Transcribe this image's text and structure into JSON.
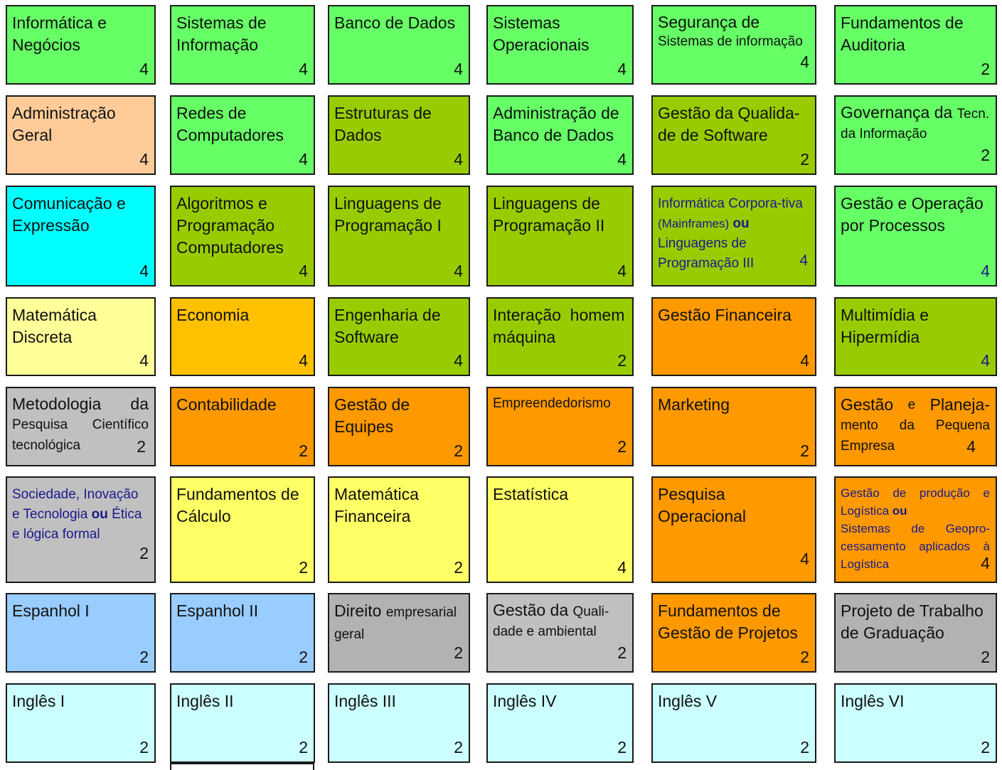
{
  "colors": {
    "bright_green": "#66ff66",
    "olive_green": "#99cc00",
    "peach": "#ffcc99",
    "cyan": "#00ffff",
    "light_yellow": "#ffff99",
    "yellow": "#ffff66",
    "gold": "#ffc000",
    "orange": "#ff9900",
    "gray": "#c0c0c0",
    "dark_gray": "#b2b2b2",
    "light_blue": "#99ccff",
    "pale_cyan": "#ccffff",
    "dark_blue_text": "#1a1a8c"
  },
  "courses": {
    "r1c1": {
      "l1": "Informática e",
      "l2": "Negócios",
      "credits": "4"
    },
    "r1c2": {
      "l1": "Sistemas de",
      "l2": "Informação",
      "credits": "4"
    },
    "r1c3": {
      "l1": "Banco de Dados",
      "credits": "4"
    },
    "r1c4": {
      "l1": "Sistemas",
      "l2": "Operacionais",
      "credits": "4"
    },
    "r1c5": {
      "l1": "Segurança de",
      "l2": "Sistemas de informação",
      "credits": "4"
    },
    "r1c6": {
      "l1": "Fundamentos de",
      "l2": "Auditoria",
      "credits": "2"
    },
    "r2c1": {
      "l1": "Administração",
      "l2": "Geral",
      "credits": "4"
    },
    "r2c2": {
      "l1": "Redes de",
      "l2": "Computadores",
      "credits": "4"
    },
    "r2c3": {
      "l1": "Estruturas de",
      "l2": "Dados",
      "credits": "4"
    },
    "r2c4": {
      "l1": "Administração de",
      "l2": "Banco de Dados",
      "credits": "4"
    },
    "r2c5": {
      "l1": "Gestão da Qualida-",
      "l2": "de de Software",
      "credits": "2"
    },
    "r2c6": {
      "l1a": "Governança da",
      "l1b": "Tecn.",
      "l2": "da Informação",
      "credits": "2"
    },
    "r3c1": {
      "l1": "Comunicação e",
      "l2": "Expressão",
      "credits": "4"
    },
    "r3c2": {
      "l1": "Algoritmos e",
      "l2": "Programação",
      "l3": "Computadores",
      "credits": "4"
    },
    "r3c3": {
      "l1": "Linguagens de",
      "l2": "Programação I",
      "credits": "4"
    },
    "r3c4": {
      "l1": "Linguagens de",
      "l2": "Programação II",
      "credits": "4"
    },
    "r3c5": {
      "l1": "Informática Corpora-tiva",
      "l2": "(Mainframes)",
      "or": "ou",
      "l3": "Linguagens de",
      "l4": "Programação III",
      "credits": "4"
    },
    "r3c6": {
      "l1": "Gestão e Operação",
      "l2": "por Processos",
      "credits": "4"
    },
    "r4c1": {
      "l1": "Matemática",
      "l2": "Discreta",
      "credits": "4"
    },
    "r4c2": {
      "l1": "Economia",
      "credits": "4"
    },
    "r4c3": {
      "l1": "Engenharia de",
      "l2": "Software",
      "credits": "4"
    },
    "r4c4": {
      "l1": "Interação  homem",
      "l2": "máquina",
      "credits": "2"
    },
    "r4c5": {
      "l1": "Gestão Financeira",
      "credits": "4"
    },
    "r4c6": {
      "l1": "Multimídia e",
      "l2": "Hipermídia",
      "credits": "4"
    },
    "r5c1": {
      "l1a": "Metodologia",
      "l1b": "da",
      "l2a": "Pesquisa",
      "l2b": "Científico",
      "l3": "tecnológica",
      "credits": "2"
    },
    "r5c2": {
      "l1": "Contabilidade",
      "credits": "2"
    },
    "r5c3": {
      "l1": "Gestão de",
      "l2": "Equipes",
      "credits": "2"
    },
    "r5c4": {
      "l1": "Empreendedorismo",
      "credits": "2"
    },
    "r5c5": {
      "l1": "Marketing",
      "credits": "2"
    },
    "r5c6": {
      "l1a": "Gestão",
      "l1b": "e",
      "l1c": "Planeja-",
      "l2a": "mento",
      "l2b": "da",
      "l2c": "Pequena",
      "l3": "Empresa",
      "credits": "4"
    },
    "r6c1": {
      "l1": "Sociedade, Inovação",
      "l2a": "e Tecnologia",
      "or": "ou",
      "l2b": "Ética",
      "l3": "e lógica formal",
      "credits": "2"
    },
    "r6c2": {
      "l1": "Fundamentos de",
      "l2": "Cálculo",
      "credits": "2"
    },
    "r6c3": {
      "l1": "Matemática",
      "l2": "Financeira",
      "credits": "2"
    },
    "r6c4": {
      "l1": "Estatística",
      "credits": "4"
    },
    "r6c5": {
      "l1": "Pesquisa",
      "l2": "Operacional",
      "credits": "4"
    },
    "r6c6": {
      "l1a": "Gestão",
      "l1b": "de",
      "l1c": "produção",
      "l1d": "e",
      "l2": "Logística",
      "or": "ou",
      "l3a": "Sistemas",
      "l3b": "de",
      "l3c": "Geopro-",
      "l4a": "cessamento",
      "l4b": "aplicados",
      "l4c": "à",
      "l5": "Logística",
      "credits": "4"
    },
    "r7c1": {
      "l1": "Espanhol I",
      "credits": "2"
    },
    "r7c2": {
      "l1": "Espanhol II",
      "credits": "2"
    },
    "r7c3": {
      "l1a": "Direito",
      "l1b": "empresarial",
      "l2": "geral",
      "credits": "2"
    },
    "r7c4": {
      "l1a": "Gestão da",
      "l1b": "Quali-",
      "l2": "dade e ambiental",
      "credits": "2"
    },
    "r7c5": {
      "l1": "Fundamentos de",
      "l2": "Gestão de Projetos",
      "credits": "2"
    },
    "r7c6": {
      "l1": "Projeto de Trabalho",
      "l2": "de Graduação",
      "credits": "2"
    },
    "r8c1": {
      "l1": "Inglês I",
      "credits": "2"
    },
    "r8c2": {
      "l1": "Inglês II",
      "credits": "2"
    },
    "r8c3": {
      "l1": "Inglês III",
      "credits": "2"
    },
    "r8c4": {
      "l1": "Inglês IV",
      "credits": "2"
    },
    "r8c5": {
      "l1": "Inglês V",
      "credits": "2"
    },
    "r8c6": {
      "l1": "Inglês VI",
      "credits": "2"
    }
  }
}
